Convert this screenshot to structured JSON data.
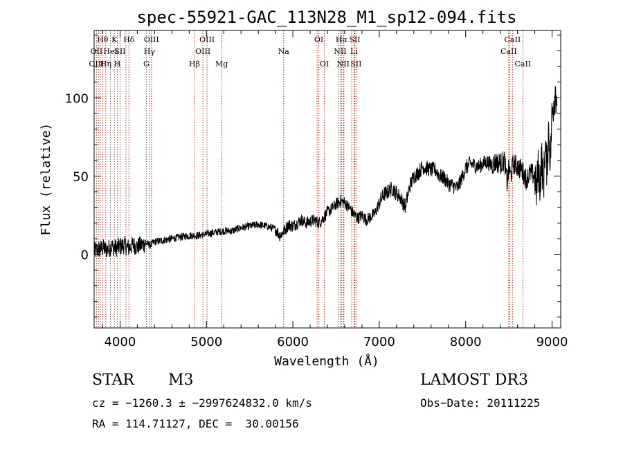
{
  "chart_data": {
    "type": "line",
    "title": "spec-55921-GAC_113N28_M1_sp12-094.fits",
    "xlabel": "Wavelength (Å)",
    "ylabel": "Flux (relative)",
    "xlim": [
      3700,
      9100
    ],
    "ylim": [
      -47,
      143
    ],
    "xticks": [
      4000,
      5000,
      6000,
      7000,
      8000,
      9000
    ],
    "yticks": [
      0,
      50,
      100
    ],
    "grid": false,
    "series": [
      {
        "name": "flux",
        "x": [
          3700,
          3750,
          3800,
          3850,
          3900,
          3950,
          4000,
          4050,
          4100,
          4150,
          4200,
          4250,
          4300,
          4350,
          4400,
          4500,
          4600,
          4700,
          4800,
          4900,
          5000,
          5100,
          5200,
          5300,
          5400,
          5500,
          5600,
          5700,
          5800,
          5850,
          5900,
          5950,
          6000,
          6050,
          6100,
          6150,
          6200,
          6250,
          6300,
          6350,
          6400,
          6450,
          6500,
          6550,
          6600,
          6650,
          6700,
          6750,
          6800,
          6850,
          6900,
          6950,
          7000,
          7050,
          7100,
          7150,
          7200,
          7250,
          7300,
          7350,
          7400,
          7450,
          7500,
          7550,
          7600,
          7650,
          7700,
          7750,
          7800,
          7850,
          7900,
          7950,
          8000,
          8050,
          8100,
          8150,
          8200,
          8250,
          8300,
          8350,
          8400,
          8450,
          8480,
          8500,
          8520,
          8550,
          8600,
          8650,
          8700,
          8750,
          8800,
          8820,
          8840,
          8860,
          8880,
          8900,
          8920,
          8940,
          8960,
          8980,
          9000,
          9020,
          9040,
          9060
        ],
        "y": [
          2,
          3,
          4,
          3,
          5,
          4,
          5,
          6,
          4,
          6,
          5,
          6,
          7,
          6,
          8,
          9,
          10,
          11,
          12,
          12,
          13,
          14,
          15,
          15,
          17,
          18,
          19,
          18,
          16,
          12,
          15,
          19,
          18,
          20,
          22,
          20,
          21,
          22,
          20,
          23,
          27,
          29,
          32,
          34,
          33,
          30,
          26,
          23,
          25,
          22,
          24,
          26,
          33,
          38,
          40,
          42,
          39,
          36,
          30,
          43,
          50,
          52,
          56,
          55,
          54,
          54,
          50,
          49,
          45,
          44,
          42,
          48,
          55,
          58,
          57,
          56,
          58,
          59,
          57,
          59,
          58,
          60,
          45,
          55,
          50,
          58,
          56,
          54,
          48,
          52,
          50,
          40,
          55,
          45,
          62,
          42,
          70,
          55,
          80,
          60,
          90,
          98,
          105,
          100
        ]
      }
    ],
    "spectral_lines": [
      {
        "label": "Hθ",
        "wavelength": 3798,
        "row": 1
      },
      {
        "label": "OII",
        "wavelength": 3727,
        "row": 2
      },
      {
        "label": "OIII",
        "wavelength": 3727,
        "row": 3
      },
      {
        "label": "Hη",
        "wavelength": 3835,
        "row": 3
      },
      {
        "label": "HeI",
        "wavelength": 3889,
        "row": 2
      },
      {
        "label": "K",
        "wavelength": 3934,
        "row": 1
      },
      {
        "label": "SII",
        "wavelength": 4000,
        "row": 2
      },
      {
        "label": "H",
        "wavelength": 3969,
        "row": 3
      },
      {
        "label": "Hδ",
        "wavelength": 4102,
        "row": 1
      },
      {
        "label": "OIII",
        "wavelength": 4363,
        "row": 1
      },
      {
        "label": "Hγ",
        "wavelength": 4340,
        "row": 2
      },
      {
        "label": "G",
        "wavelength": 4304,
        "row": 3
      },
      {
        "label": "OIII",
        "wavelength": 5007,
        "row": 1
      },
      {
        "label": "OIII",
        "wavelength": 4959,
        "row": 2
      },
      {
        "label": "Hβ",
        "wavelength": 4861,
        "row": 3
      },
      {
        "label": "Mg",
        "wavelength": 5175,
        "row": 3
      },
      {
        "label": "Na",
        "wavelength": 5893,
        "row": 2
      },
      {
        "label": "OI",
        "wavelength": 6300,
        "row": 1
      },
      {
        "label": "OI",
        "wavelength": 6364,
        "row": 3
      },
      {
        "label": "Hα",
        "wavelength": 6563,
        "row": 1
      },
      {
        "label": "SII",
        "wavelength": 6716,
        "row": 1
      },
      {
        "label": "NII",
        "wavelength": 6548,
        "row": 2
      },
      {
        "label": "Li",
        "wavelength": 6708,
        "row": 2
      },
      {
        "label": "NII",
        "wavelength": 6583,
        "row": 3
      },
      {
        "label": "SII",
        "wavelength": 6731,
        "row": 3
      },
      {
        "label": "CaII",
        "wavelength": 8542,
        "row": 1
      },
      {
        "label": "CaII",
        "wavelength": 8498,
        "row": 2
      },
      {
        "label": "CaII",
        "wavelength": 8662,
        "row": 3
      }
    ],
    "extra_line_positions": [
      3750,
      3771,
      4068,
      6280,
      6530,
      6590,
      6680,
      8510
    ]
  },
  "info": {
    "object_type": "STAR",
    "subclass": "M3",
    "survey": "LAMOST DR3",
    "cz_text": "cz = −1260.3 ± −2997624832.0 km/s",
    "obs_date_text": "Obs−Date: 20111225",
    "radec_text": "RA = 114.71127, DEC =  30.00156"
  }
}
